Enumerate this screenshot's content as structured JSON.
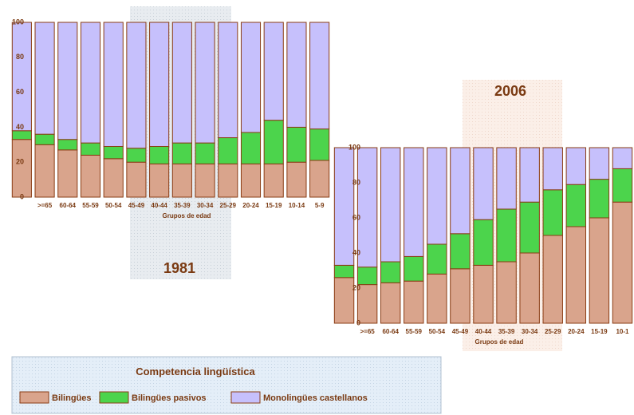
{
  "chart_data": [
    {
      "type": "stacked_bar",
      "title": "1981",
      "x_label": "Grupos de edad",
      "categories": [
        null,
        ">=65",
        "60-64",
        "55-59",
        "50-54",
        "45-49",
        "40-44",
        "35-39",
        "30-34",
        "25-29",
        "20-24",
        "15-19",
        "10-14",
        "5-9"
      ],
      "series": [
        {
          "values": [
            33,
            30,
            27,
            24,
            22,
            20,
            19,
            19,
            19,
            19,
            19,
            19,
            20,
            21
          ]
        },
        {
          "values": [
            5,
            6,
            6,
            7,
            7,
            8,
            10,
            12,
            12,
            15,
            18,
            25,
            20,
            18
          ]
        },
        {
          "values": [
            62,
            64,
            67,
            69,
            71,
            72,
            71,
            69,
            69,
            66,
            63,
            56,
            60,
            61
          ]
        }
      ],
      "ylim": [
        0,
        100
      ],
      "yticks": [
        0,
        20,
        40,
        60,
        80,
        100
      ]
    },
    {
      "type": "stacked_bar",
      "title": "2006",
      "x_label": "Grupos de edad",
      "categories": [
        null,
        ">=65",
        "60-64",
        "55-59",
        "50-54",
        "45-49",
        "40-44",
        "35-39",
        "30-34",
        "25-29",
        "20-24",
        "15-19",
        "10-1"
      ],
      "series": [
        {
          "values": [
            26,
            22,
            23,
            24,
            28,
            31,
            33,
            35,
            40,
            50,
            55,
            60,
            69
          ]
        },
        {
          "values": [
            7,
            10,
            12,
            14,
            17,
            20,
            26,
            30,
            29,
            26,
            24,
            22,
            19
          ]
        },
        {
          "values": [
            67,
            68,
            65,
            62,
            55,
            49,
            41,
            35,
            31,
            24,
            21,
            18,
            12
          ]
        }
      ],
      "ylim": [
        0,
        100
      ],
      "yticks": [
        0,
        20,
        40,
        60,
        80,
        100
      ]
    }
  ],
  "legend": {
    "title": "Competencia lingüística",
    "series": [
      {
        "name": "Bilingües",
        "color": "#d9a48c"
      },
      {
        "name": "Bilingües pasivos",
        "color": "#4cd44c"
      },
      {
        "name": "Monolingües castellanos",
        "color": "#c6c0fc"
      }
    ]
  }
}
